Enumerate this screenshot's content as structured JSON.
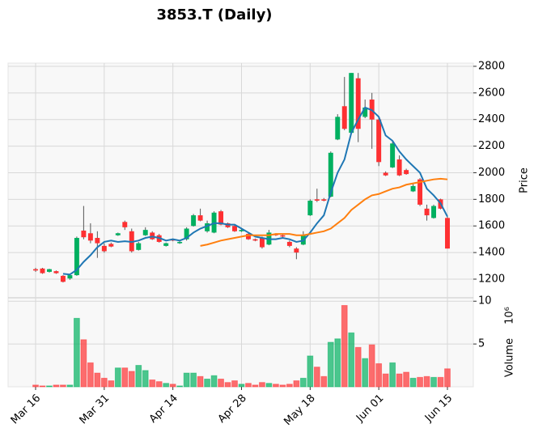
{
  "chart_data": {
    "type": "candlestick",
    "title": "3853.T (Daily)",
    "categories": [
      "Mar 16",
      null,
      null,
      null,
      null,
      null,
      null,
      null,
      null,
      null,
      "Mar 31",
      null,
      null,
      null,
      null,
      null,
      null,
      null,
      null,
      null,
      "Apr 14",
      null,
      null,
      null,
      null,
      null,
      null,
      null,
      null,
      null,
      "Apr 28",
      null,
      null,
      null,
      null,
      null,
      null,
      null,
      null,
      null,
      "May 18",
      null,
      null,
      null,
      null,
      null,
      null,
      null,
      null,
      null,
      "Jun 01",
      null,
      null,
      null,
      null,
      null,
      null,
      null,
      null,
      null,
      "Jun 15"
    ],
    "open": [
      1275,
      1280,
      1255,
      1260,
      1225,
      1205,
      1230,
      1565,
      1545,
      1510,
      1450,
      1465,
      1530,
      1630,
      1560,
      1420,
      1530,
      1550,
      1530,
      1450,
      1500,
      1470,
      1500,
      1600,
      1680,
      1560,
      1550,
      1710,
      1620,
      1600,
      1560,
      1540,
      1500,
      1510,
      1460,
      1540,
      1530,
      1480,
      1430,
      1460,
      1680,
      1800,
      1800,
      1820,
      2250,
      2500,
      2300,
      2710,
      2420,
      2550,
      2400,
      2000,
      2040,
      2100,
      2020,
      1860,
      1950,
      1730,
      1660,
      1800,
      1660
    ],
    "high": [
      1285,
      1285,
      1278,
      1265,
      1230,
      1240,
      1520,
      1750,
      1620,
      1560,
      1470,
      1475,
      1550,
      1640,
      1580,
      1480,
      1590,
      1560,
      1540,
      1475,
      1505,
      1485,
      1590,
      1690,
      1730,
      1640,
      1710,
      1720,
      1625,
      1610,
      1575,
      1545,
      1505,
      1520,
      1570,
      1545,
      1535,
      1490,
      1440,
      1560,
      1800,
      1880,
      1810,
      2160,
      2440,
      2720,
      2750,
      2750,
      2550,
      2600,
      2420,
      2010,
      2240,
      2130,
      2030,
      1920,
      1960,
      1760,
      1760,
      1805,
      1670
    ],
    "low": [
      1255,
      1240,
      1250,
      1240,
      1175,
      1195,
      1225,
      1500,
      1470,
      1360,
      1400,
      1440,
      1525,
      1570,
      1400,
      1415,
      1525,
      1495,
      1475,
      1445,
      1485,
      1465,
      1490,
      1595,
      1635,
      1550,
      1545,
      1605,
      1585,
      1555,
      1555,
      1495,
      1485,
      1430,
      1455,
      1525,
      1515,
      1440,
      1350,
      1455,
      1675,
      1780,
      1785,
      1815,
      2245,
      2320,
      2295,
      2230,
      2410,
      2180,
      2050,
      1975,
      2035,
      1975,
      1985,
      1855,
      1750,
      1640,
      1655,
      1725,
      1430
    ],
    "close": [
      1265,
      1245,
      1275,
      1245,
      1180,
      1230,
      1510,
      1515,
      1490,
      1470,
      1410,
      1445,
      1545,
      1590,
      1410,
      1470,
      1570,
      1500,
      1480,
      1470,
      1490,
      1480,
      1580,
      1680,
      1640,
      1620,
      1700,
      1610,
      1590,
      1560,
      1570,
      1500,
      1490,
      1440,
      1550,
      1530,
      1520,
      1450,
      1400,
      1530,
      1790,
      1790,
      1790,
      2150,
      2420,
      2330,
      2750,
      2330,
      2490,
      2400,
      2080,
      1980,
      2220,
      1980,
      1990,
      1900,
      1760,
      1680,
      1750,
      1730,
      1430
    ],
    "up_color": "#00b060",
    "down_color": "#fe3032",
    "moving_averages": [
      {
        "color": "#1f77b4",
        "values": [
          null,
          null,
          null,
          null,
          1240,
          1235,
          1270,
          1330,
          1380,
          1440,
          1480,
          1490,
          1480,
          1485,
          1480,
          1490,
          1510,
          1520,
          1510,
          1490,
          1500,
          1490,
          1510,
          1550,
          1580,
          1600,
          1620,
          1620,
          1610,
          1610,
          1580,
          1550,
          1520,
          1510,
          1500,
          1500,
          1510,
          1500,
          1480,
          1490,
          1550,
          1620,
          1680,
          1850,
          2000,
          2100,
          2300,
          2400,
          2490,
          2470,
          2420,
          2280,
          2240,
          2160,
          2100,
          2050,
          2000,
          1880,
          1830,
          1770,
          1670
        ]
      },
      {
        "color": "#ff7f0e",
        "values": [
          null,
          null,
          null,
          null,
          null,
          null,
          null,
          null,
          null,
          null,
          null,
          null,
          null,
          null,
          null,
          null,
          null,
          null,
          null,
          null,
          null,
          null,
          null,
          null,
          1450,
          1460,
          1475,
          1490,
          1500,
          1510,
          1520,
          1530,
          1530,
          1530,
          1530,
          1540,
          1540,
          1540,
          1530,
          1530,
          1540,
          1550,
          1560,
          1580,
          1620,
          1660,
          1720,
          1760,
          1800,
          1830,
          1840,
          1860,
          1880,
          1890,
          1910,
          1920,
          1930,
          1940,
          1950,
          1955,
          1950
        ]
      }
    ],
    "ylim": [
      1060,
      2824
    ],
    "yticks": [
      1200,
      1400,
      1600,
      1800,
      2000,
      2200,
      2400,
      2600,
      2800
    ],
    "ylabel": "Price",
    "volume": {
      "values": [
        0.2,
        0.1,
        0.1,
        0.2,
        0.2,
        0.2,
        8.0,
        5.5,
        2.8,
        1.6,
        1.0,
        0.7,
        2.2,
        2.2,
        1.8,
        2.5,
        1.9,
        0.8,
        0.6,
        0.4,
        0.3,
        0.1,
        1.6,
        1.6,
        1.2,
        0.9,
        1.3,
        0.9,
        0.5,
        0.7,
        0.3,
        0.4,
        0.2,
        0.5,
        0.4,
        0.3,
        0.2,
        0.3,
        0.7,
        1.0,
        3.6,
        2.3,
        1.2,
        5.2,
        5.6,
        9.5,
        6.3,
        4.6,
        3.3,
        4.9,
        2.7,
        1.5,
        2.8,
        1.5,
        1.7,
        1.0,
        1.1,
        1.2,
        1.1,
        1.1,
        2.1
      ],
      "ylim": [
        0,
        10.4
      ],
      "yticks": [
        5,
        10
      ],
      "ylabel": "Volume",
      "multiplier": "10⁶"
    },
    "grid": true
  }
}
